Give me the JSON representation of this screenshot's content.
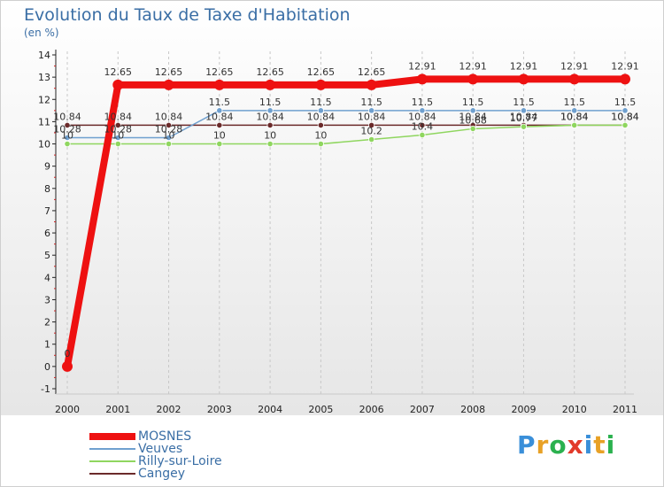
{
  "chart_data": {
    "type": "line",
    "title": "Evolution du Taux de Taxe d'Habitation",
    "subtitle": "(en %)",
    "xlabel": "",
    "ylabel": "",
    "categories": [
      "2000",
      "2001",
      "2002",
      "2003",
      "2004",
      "2005",
      "2006",
      "2007",
      "2008",
      "2009",
      "2010",
      "2011"
    ],
    "ylim": [
      -1,
      14
    ],
    "yticks": [
      "-1",
      "0",
      "1",
      "2",
      "3",
      "4",
      "5",
      "6",
      "7",
      "8",
      "9",
      "10",
      "11",
      "12",
      "13",
      "14"
    ],
    "series": [
      {
        "name": "MOSNES",
        "color": "#ee1111",
        "values": [
          0,
          12.65,
          12.65,
          12.65,
          12.65,
          12.65,
          12.65,
          12.91,
          12.91,
          12.91,
          12.91,
          12.91
        ],
        "labels": [
          "0",
          "12.65",
          "12.65",
          "12.65",
          "12.65",
          "12.65",
          "12.65",
          "12.91",
          "12.91",
          "12.91",
          "12.91",
          "12.91"
        ]
      },
      {
        "name": "Veuves",
        "color": "#6fa0cf",
        "values": [
          10.28,
          10.28,
          10.28,
          11.5,
          11.5,
          11.5,
          11.5,
          11.5,
          11.5,
          11.5,
          11.5,
          11.5
        ],
        "labels": [
          "10.28",
          "10.28",
          "10.28",
          "11.5",
          "11.5",
          "11.5",
          "11.5",
          "11.5",
          "11.5",
          "11.5",
          "11.5",
          "11.5"
        ]
      },
      {
        "name": "Rilly-sur-Loire",
        "color": "#8fd65f",
        "values": [
          10,
          10,
          10,
          10,
          10,
          10,
          10.2,
          10.4,
          10.68,
          10.77,
          10.84,
          10.84
        ],
        "labels": [
          "10",
          "10",
          "10",
          "10",
          "10",
          "10",
          "10.2",
          "10.4",
          "10.68",
          "10.77",
          "10.84",
          "10.84"
        ]
      },
      {
        "name": "Cangey",
        "color": "#6b2a2a",
        "values": [
          10.84,
          10.84,
          10.84,
          10.84,
          10.84,
          10.84,
          10.84,
          10.84,
          10.84,
          10.84,
          10.84,
          10.84
        ],
        "labels": [
          "10.84",
          "10.84",
          "10.84",
          "10.84",
          "10.84",
          "10.84",
          "10.84",
          "10.84",
          "10.84",
          "10.84",
          "10.84",
          "10.84"
        ]
      }
    ]
  },
  "legend": {
    "items": [
      "MOSNES",
      "Veuves",
      "Rilly-sur-Loire",
      "Cangey"
    ]
  },
  "brand": {
    "letters": [
      "P",
      "r",
      "o",
      "x",
      "i",
      "t",
      "i"
    ],
    "colors": [
      "#3a8fd9",
      "#e8a126",
      "#2bb14f",
      "#e23a2a",
      "#3a8fd9",
      "#e8a126",
      "#2bb14f"
    ]
  }
}
